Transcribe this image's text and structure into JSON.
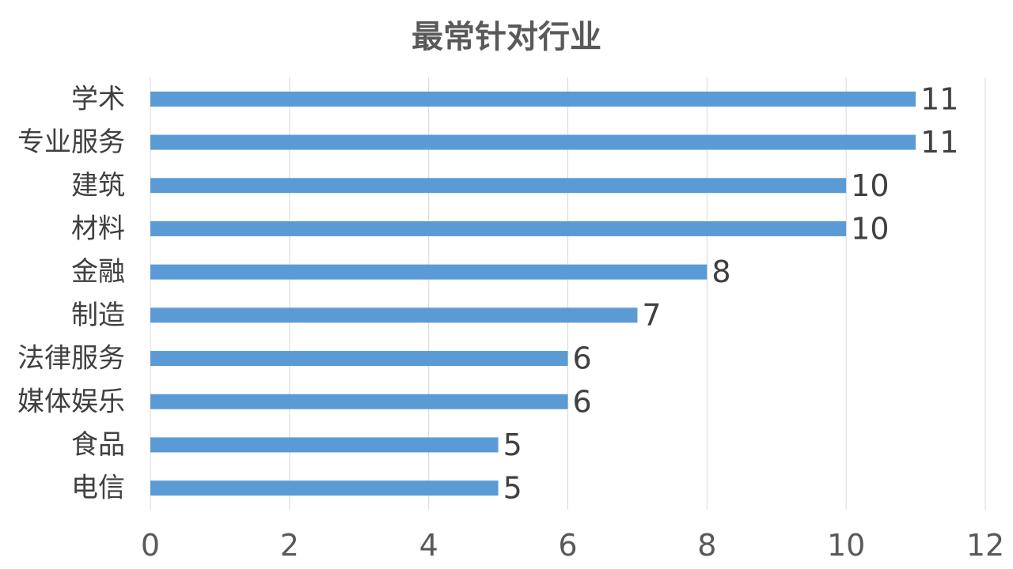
{
  "chart_data": {
    "type": "bar",
    "orientation": "horizontal",
    "title": "最常针对行业",
    "xlabel": "",
    "ylabel": "",
    "categories": [
      "学术",
      "专业服务",
      "建筑",
      "材料",
      "金融",
      "制造",
      "法律服务",
      "媒体娱乐",
      "食品",
      "电信"
    ],
    "values": [
      11,
      11,
      10,
      10,
      8,
      7,
      6,
      6,
      5,
      5
    ],
    "xlim": [
      0,
      12
    ],
    "xticks": [
      "0",
      "2",
      "4",
      "6",
      "8",
      "10",
      "12"
    ],
    "grid": "vertical",
    "data_labels": true,
    "legend": "none",
    "colors": {
      "bar": "#5b9bd5",
      "text": "#404040",
      "title": "#595959",
      "tick": "#595959",
      "grid": "#d9d9d9"
    }
  }
}
